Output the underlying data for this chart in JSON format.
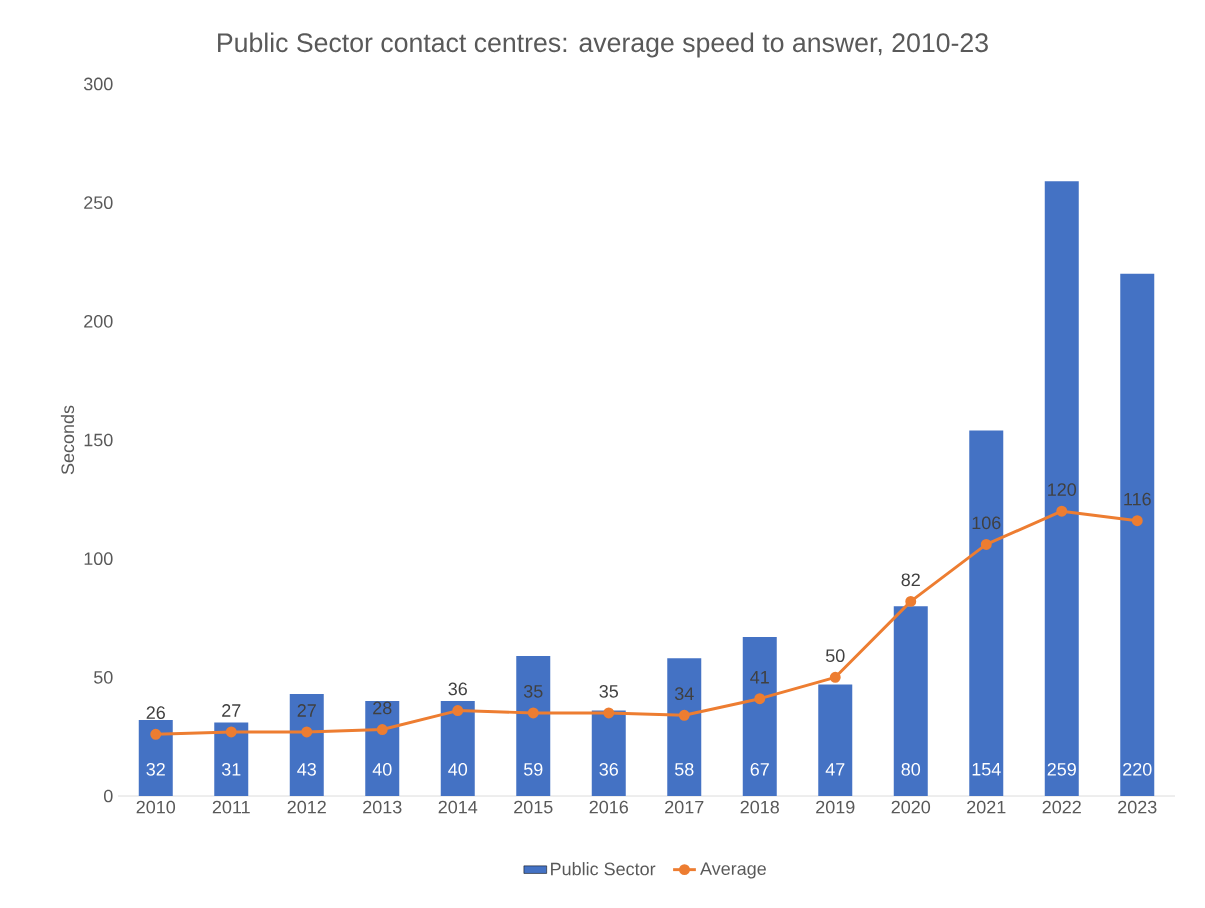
{
  "chart_data": {
    "type": "bar",
    "title": "Public Sector contact centres: average speed to answer, 2010-23",
    "ylabel": "Seconds",
    "categories": [
      "2010",
      "2011",
      "2012",
      "2013",
      "2014",
      "2015",
      "2016",
      "2017",
      "2018",
      "2019",
      "2020",
      "2021",
      "2022",
      "2023"
    ],
    "series": [
      {
        "name": "Public Sector",
        "color": "#4472c4",
        "values": [
          32,
          31,
          43,
          40,
          40,
          59,
          36,
          58,
          67,
          47,
          80,
          154,
          259,
          220
        ]
      },
      {
        "name": "Average",
        "type": "line",
        "color": "#ed7d31",
        "marker": "circle",
        "values": [
          26,
          27,
          27,
          28,
          36,
          35,
          35,
          34,
          41,
          50,
          82,
          106,
          120,
          116
        ]
      }
    ],
    "ylim": [
      0,
      300
    ],
    "yticks": [
      0,
      50,
      100,
      150,
      200,
      250,
      300
    ],
    "data_labels": true,
    "legend": "bottom",
    "grid": false
  }
}
